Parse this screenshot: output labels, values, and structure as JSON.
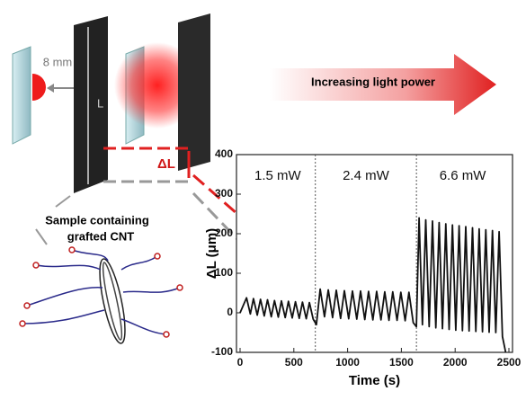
{
  "diagram": {
    "distance_label": "8 mm",
    "length_label": "L",
    "delta_label": "ΔL",
    "sample_label": [
      "Sample containing",
      "grafted CNT"
    ],
    "arrow_label": "Increasing light power"
  },
  "chart_data": {
    "type": "line",
    "x": [
      0,
      60,
      95,
      125,
      160,
      190,
      225,
      255,
      290,
      320,
      355,
      385,
      420,
      450,
      485,
      515,
      550,
      580,
      615,
      645,
      680,
      710,
      745,
      785,
      820,
      860,
      895,
      935,
      970,
      1010,
      1045,
      1085,
      1120,
      1160,
      1195,
      1235,
      1270,
      1310,
      1345,
      1385,
      1420,
      1460,
      1495,
      1535,
      1570,
      1610,
      1640,
      1665,
      1696,
      1727,
      1758,
      1789,
      1820,
      1851,
      1882,
      1913,
      1944,
      1975,
      2006,
      2037,
      2068,
      2099,
      2130,
      2161,
      2192,
      2223,
      2254,
      2285,
      2316,
      2347,
      2378,
      2409,
      2440,
      2470
    ],
    "series": [
      {
        "color": "#111111",
        "values": [
          0,
          38,
          -3,
          36,
          -6,
          34,
          -8,
          33,
          -10,
          31,
          -11,
          30,
          -12,
          29,
          -13,
          28,
          -14,
          27,
          -15,
          26,
          -16,
          -30,
          60,
          -10,
          58,
          -12,
          57,
          -14,
          56,
          -15,
          55,
          -16,
          55,
          -17,
          54,
          -18,
          54,
          -18,
          53,
          -19,
          53,
          -19,
          52,
          -20,
          52,
          -25,
          -35,
          240,
          -30,
          235,
          -35,
          232,
          -38,
          228,
          -40,
          225,
          -42,
          222,
          -44,
          220,
          -45,
          218,
          -46,
          215,
          -47,
          212,
          -48,
          210,
          -49,
          208,
          -50,
          205,
          -60,
          -100
        ]
      }
    ],
    "xlabel": "Time (s)",
    "ylabel": "ΔL (μm)",
    "xlim": [
      0,
      2500
    ],
    "xticks": [
      0,
      500,
      1000,
      1500,
      2000,
      2500
    ],
    "ylim": [
      -100,
      400
    ],
    "yticks": [
      -100,
      0,
      100,
      200,
      300,
      400
    ],
    "section_boundaries": [
      700,
      1640
    ],
    "annotations": [
      "1.5 mW",
      "2.4 mW",
      "6.6 mW"
    ]
  }
}
